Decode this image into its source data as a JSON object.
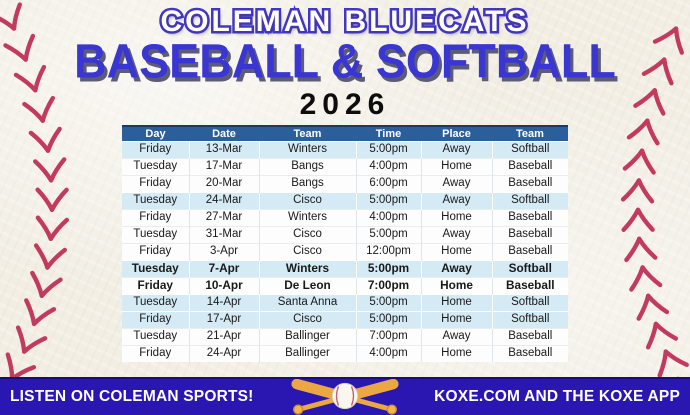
{
  "title": {
    "team": "COLEMAN BLUECATS",
    "sports": "BASEBALL & SOFTBALL",
    "year": "2026"
  },
  "schedule": {
    "columns": [
      "Day",
      "Date",
      "Team",
      "Time",
      "Place",
      "Team"
    ],
    "rows": [
      {
        "day": "Friday",
        "date": "13-Mar",
        "team": "Winters",
        "time": "5:00pm",
        "place": "Away",
        "sport": "Softball",
        "highlight": true,
        "bold": false
      },
      {
        "day": "Tuesday",
        "date": "17-Mar",
        "team": "Bangs",
        "time": "4:00pm",
        "place": "Home",
        "sport": "Baseball",
        "highlight": false,
        "bold": false
      },
      {
        "day": "Friday",
        "date": "20-Mar",
        "team": "Bangs",
        "time": "6:00pm",
        "place": "Away",
        "sport": "Baseball",
        "highlight": false,
        "bold": false
      },
      {
        "day": "Tuesday",
        "date": "24-Mar",
        "team": "Cisco",
        "time": "5:00pm",
        "place": "Away",
        "sport": "Softball",
        "highlight": true,
        "bold": false
      },
      {
        "day": "Friday",
        "date": "27-Mar",
        "team": "Winters",
        "time": "4:00pm",
        "place": "Home",
        "sport": "Baseball",
        "highlight": false,
        "bold": false
      },
      {
        "day": "Tuesday",
        "date": "31-Mar",
        "team": "Cisco",
        "time": "5:00pm",
        "place": "Away",
        "sport": "Baseball",
        "highlight": false,
        "bold": false
      },
      {
        "day": "Friday",
        "date": "3-Apr",
        "team": "Cisco",
        "time": "12:00pm",
        "place": "Home",
        "sport": "Baseball",
        "highlight": false,
        "bold": false
      },
      {
        "day": "Tuesday",
        "date": "7-Apr",
        "team": "Winters",
        "time": "5:00pm",
        "place": "Away",
        "sport": "Softball",
        "highlight": true,
        "bold": true
      },
      {
        "day": "Friday",
        "date": "10-Apr",
        "team": "De Leon",
        "time": "7:00pm",
        "place": "Home",
        "sport": "Baseball",
        "highlight": false,
        "bold": true
      },
      {
        "day": "Tuesday",
        "date": "14-Apr",
        "team": "Santa Anna",
        "time": "5:00pm",
        "place": "Home",
        "sport": "Softball",
        "highlight": true,
        "bold": false
      },
      {
        "day": "Friday",
        "date": "17-Apr",
        "team": "Cisco",
        "time": "5:00pm",
        "place": "Home",
        "sport": "Softball",
        "highlight": true,
        "bold": false
      },
      {
        "day": "Tuesday",
        "date": "21-Apr",
        "team": "Ballinger",
        "time": "7:00pm",
        "place": "Away",
        "sport": "Baseball",
        "highlight": false,
        "bold": false
      },
      {
        "day": "Friday",
        "date": "24-Apr",
        "team": "Ballinger",
        "time": "4:00pm",
        "place": "Home",
        "sport": "Baseball",
        "highlight": false,
        "bold": false
      }
    ]
  },
  "footer": {
    "left": "LISTEN ON COLEMAN SPORTS!",
    "right": "KOXE.COM AND THE KOXE APP",
    "icon": "crossed-bats-baseball-icon"
  },
  "colors": {
    "background_cream": "#f2eee4",
    "stitch_red": "#c23b5e",
    "header_blue": "#2b5f9c",
    "row_highlight_blue": "#d4ebf5",
    "title_outline_purple": "#4237c5",
    "title_blue": "#3a36d3",
    "footer_purple": "#2a17b2",
    "bat_gold": "#eaa742"
  }
}
